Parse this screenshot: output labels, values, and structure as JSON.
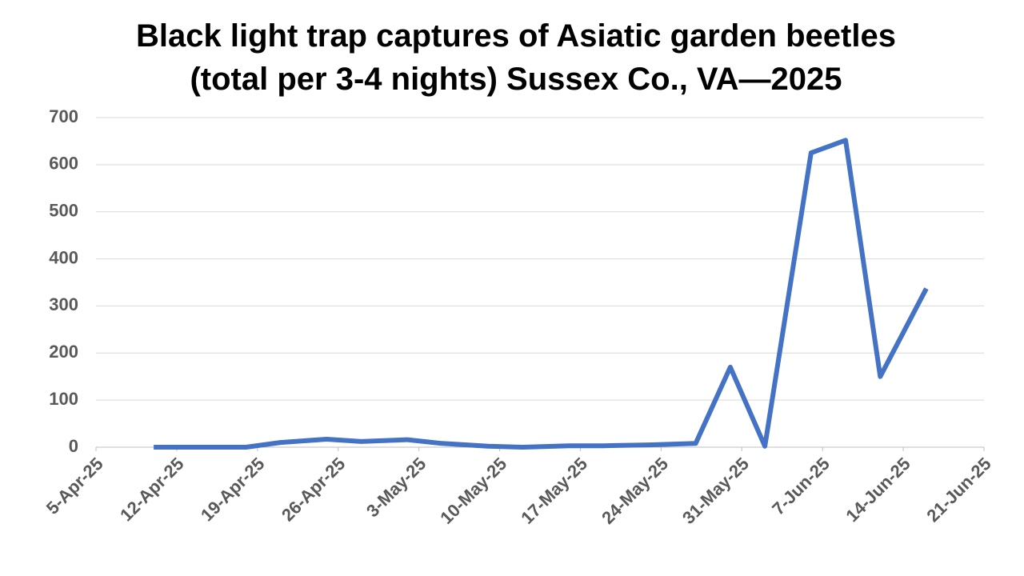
{
  "chart_data": {
    "type": "line",
    "title": "Black light trap captures of Asiatic garden beetles",
    "subtitle": "(total per 3-4 nights) Sussex Co., VA—2025",
    "x": [
      "2025-04-10",
      "2025-04-14",
      "2025-04-18",
      "2025-04-21",
      "2025-04-25",
      "2025-04-28",
      "2025-05-02",
      "2025-05-05",
      "2025-05-09",
      "2025-05-12",
      "2025-05-16",
      "2025-05-19",
      "2025-05-23",
      "2025-05-27",
      "2025-05-30",
      "2025-06-02",
      "2025-06-06",
      "2025-06-09",
      "2025-06-12",
      "2025-06-16"
    ],
    "series": [
      {
        "name": "Asiatic garden beetles",
        "color": "#4472c4",
        "values": [
          0,
          0,
          0,
          10,
          17,
          12,
          16,
          8,
          2,
          0,
          3,
          3,
          5,
          8,
          170,
          2,
          625,
          652,
          150,
          337
        ]
      }
    ],
    "xlim": [
      "2025-04-05",
      "2025-06-21"
    ],
    "xticks": [
      {
        "value": "2025-04-05",
        "label": "5-Apr-25"
      },
      {
        "value": "2025-04-12",
        "label": "12-Apr-25"
      },
      {
        "value": "2025-04-19",
        "label": "19-Apr-25"
      },
      {
        "value": "2025-04-26",
        "label": "26-Apr-25"
      },
      {
        "value": "2025-05-03",
        "label": "3-May-25"
      },
      {
        "value": "2025-05-10",
        "label": "10-May-25"
      },
      {
        "value": "2025-05-17",
        "label": "17-May-25"
      },
      {
        "value": "2025-05-24",
        "label": "24-May-25"
      },
      {
        "value": "2025-05-31",
        "label": "31-May-25"
      },
      {
        "value": "2025-06-07",
        "label": "7-Jun-25"
      },
      {
        "value": "2025-06-14",
        "label": "14-Jun-25"
      },
      {
        "value": "2025-06-21",
        "label": "21-Jun-25"
      }
    ],
    "ylim": [
      0,
      700
    ],
    "yticks": [
      0,
      100,
      200,
      300,
      400,
      500,
      600,
      700
    ],
    "grid": true
  }
}
